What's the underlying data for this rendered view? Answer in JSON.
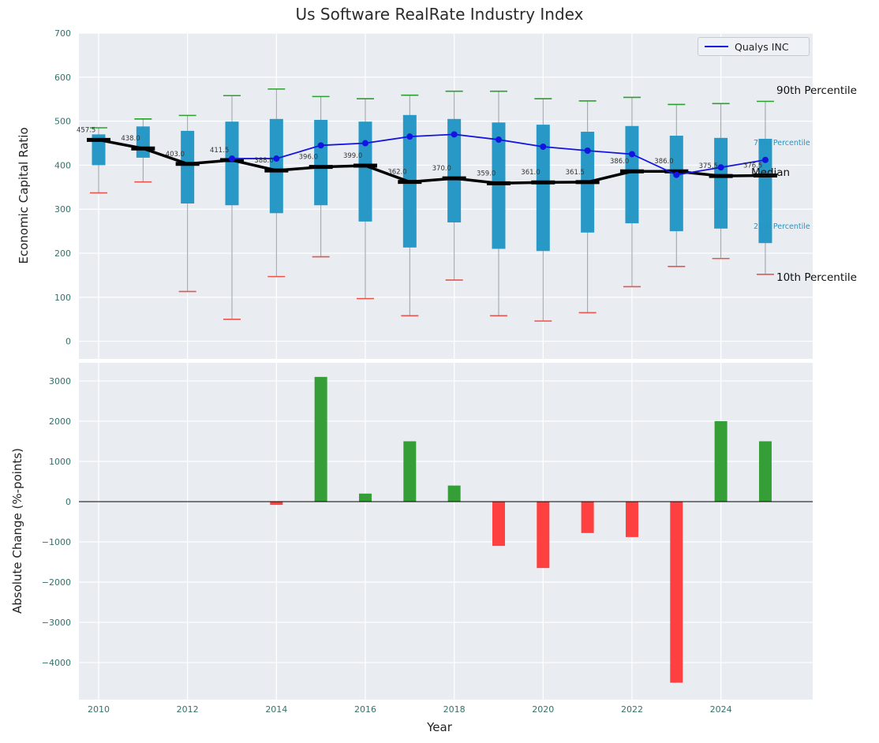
{
  "chart_data": [
    {
      "type": "boxplot+line",
      "title": "Us Software RealRate Industry Index",
      "ylabel": "Economic Capital Ratio",
      "ylim": [
        0,
        700
      ],
      "yticks": [
        0,
        100,
        200,
        300,
        400,
        500,
        600,
        700
      ],
      "grid": true,
      "legend_position": "upper right",
      "years": [
        2010,
        2011,
        2012,
        2013,
        2014,
        2015,
        2016,
        2017,
        2018,
        2019,
        2020,
        2021,
        2022,
        2023,
        2024,
        2025
      ],
      "percentiles": {
        "p90": [
          485,
          505,
          513,
          558,
          573,
          556,
          551,
          559,
          568,
          568,
          551,
          546,
          554,
          538,
          540,
          545
        ],
        "p75": [
          470,
          488,
          478,
          499,
          505,
          503,
          499,
          514,
          505,
          497,
          492,
          476,
          489,
          467,
          462,
          460
        ],
        "median": [
          457.5,
          438.0,
          403.0,
          411.5,
          388.0,
          396.0,
          399.0,
          362.0,
          370.0,
          359.0,
          361.0,
          361.5,
          386.0,
          386.0,
          375.5,
          376.5
        ],
        "p25": [
          400,
          417,
          313,
          309,
          291,
          309,
          272,
          213,
          270,
          210,
          205,
          247,
          268,
          250,
          256,
          223
        ],
        "p10": [
          337,
          362,
          113,
          50,
          147,
          192,
          97,
          58,
          139,
          58,
          46,
          65,
          124,
          170,
          188,
          152
        ]
      },
      "line_series": {
        "name": "Qualys INC",
        "years": [
          2013,
          2014,
          2015,
          2016,
          2017,
          2018,
          2019,
          2020,
          2021,
          2022,
          2023,
          2024,
          2025
        ],
        "values": [
          415,
          415,
          445,
          450,
          465,
          470,
          458,
          442,
          433,
          425,
          378,
          395,
          412
        ]
      },
      "annotations": {
        "p90": "90th Percentile",
        "p75": "75th Percentile",
        "median": "Median",
        "p25": "25th Percentile",
        "p10": "10th Percentile"
      }
    },
    {
      "type": "bar",
      "ylabel": "Absolute Change (%-points)",
      "xlabel": "Year",
      "yticks": [
        3000,
        2000,
        1000,
        0,
        -1000,
        -2000,
        -3000,
        -4000
      ],
      "xticks": [
        2010,
        2012,
        2014,
        2016,
        2018,
        2020,
        2022,
        2024
      ],
      "grid": true,
      "years": [
        2010,
        2011,
        2012,
        2013,
        2014,
        2015,
        2016,
        2017,
        2018,
        2019,
        2020,
        2021,
        2022,
        2023,
        2024,
        2025
      ],
      "values": [
        0,
        0,
        0,
        0,
        -80,
        3100,
        200,
        1500,
        400,
        -1100,
        -1650,
        -780,
        -880,
        -4500,
        2000,
        1500
      ]
    }
  ],
  "colors": {
    "box": "#2899c7",
    "p90_cap": "#2ca02c",
    "p10_cap": "#e8554c",
    "whisker": "#9aa0a6",
    "median": "#000000",
    "company_line": "#1414e0",
    "bar_positive": "#369e36",
    "bar_negative": "#ff4040",
    "plot_background": "#e9edf2",
    "grid": "#ffffff",
    "tick_labels": "#35706b",
    "annotation_teal": "#2196c4",
    "median_value_labels": "#333333"
  }
}
